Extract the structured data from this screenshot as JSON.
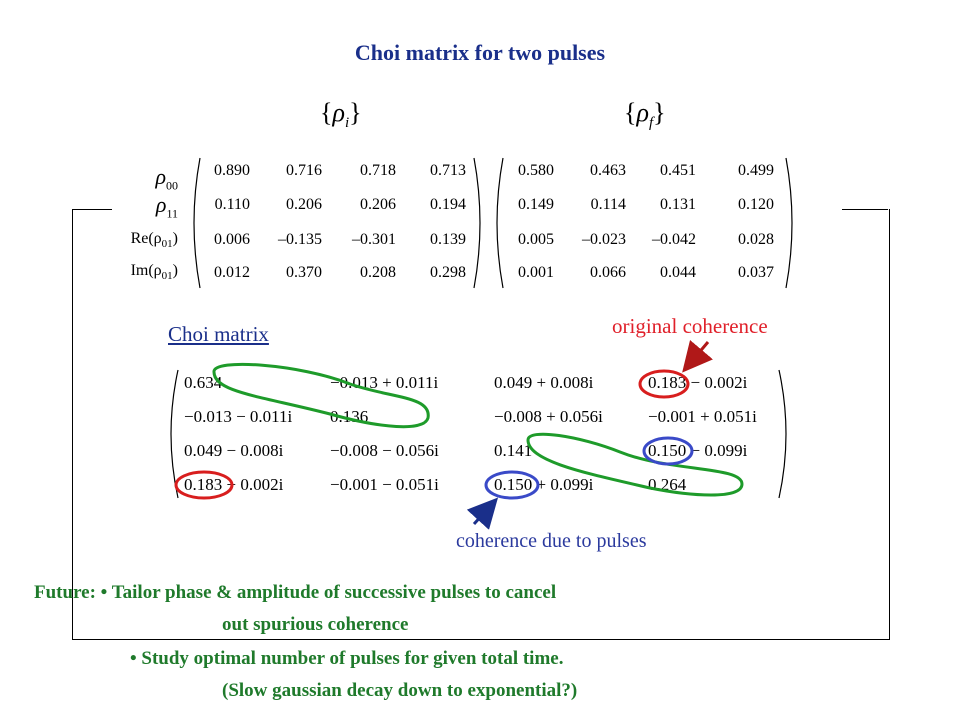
{
  "title": "Choi matrix for two pulses",
  "sets": {
    "initial": {
      "brace_open": "{",
      "symbol": "ρ",
      "sub": "i",
      "brace_close": "}"
    },
    "final": {
      "brace_open": "{",
      "symbol": "ρ",
      "sub": "f",
      "brace_close": "}"
    }
  },
  "row_labels": [
    {
      "main": "ρ",
      "sub": "00",
      "tail": ""
    },
    {
      "main": "ρ",
      "sub": "11",
      "tail": ""
    },
    {
      "main": "Re(ρ",
      "sub": "01",
      "tail": ")"
    },
    {
      "main": "Im(ρ",
      "sub": "01",
      "tail": ")"
    }
  ],
  "rho_i": [
    [
      "0.890",
      "0.716",
      "0.718",
      "0.713"
    ],
    [
      "0.110",
      "0.206",
      "0.206",
      "0.194"
    ],
    [
      "0.006",
      "–0.135",
      "–0.301",
      "0.139"
    ],
    [
      "0.012",
      "0.370",
      "0.208",
      "0.298"
    ]
  ],
  "rho_f": [
    [
      "0.580",
      "0.463",
      "0.451",
      "0.499"
    ],
    [
      "0.149",
      "0.114",
      "0.131",
      "0.120"
    ],
    [
      "0.005",
      "–0.023",
      "–0.042",
      "0.028"
    ],
    [
      "0.001",
      "0.066",
      "0.044",
      "0.037"
    ]
  ],
  "choi_label": "Choi matrix",
  "choi": [
    [
      "0.634",
      "−0.013 + 0.011i",
      "0.049 + 0.008i",
      "0.183 − 0.002i"
    ],
    [
      "−0.013 − 0.011i",
      "0.136",
      "−0.008 + 0.056i",
      "−0.001 + 0.051i"
    ],
    [
      "0.049 − 0.008i",
      "−0.008 − 0.056i",
      "0.141",
      "0.150 − 0.099i"
    ],
    [
      "0.183 + 0.002i",
      "−0.001 − 0.051i",
      "0.150 + 0.099i",
      "0.264"
    ]
  ],
  "annotations": {
    "original": "original coherence",
    "pulses": "coherence due to pulses"
  },
  "colors": {
    "title": "#1a2f8a",
    "red": "#e0202a",
    "green": "#1e9b2a",
    "blue": "#3a4ac8",
    "future_text": "#1f7a2b"
  },
  "future": {
    "line1": "Future: • Tailor phase & amplitude of successive pulses to cancel",
    "line2": "out spurious coherence",
    "line3": "• Study optimal number of pulses for given total time.",
    "line4": "(Slow gaussian decay down to exponential?)"
  }
}
